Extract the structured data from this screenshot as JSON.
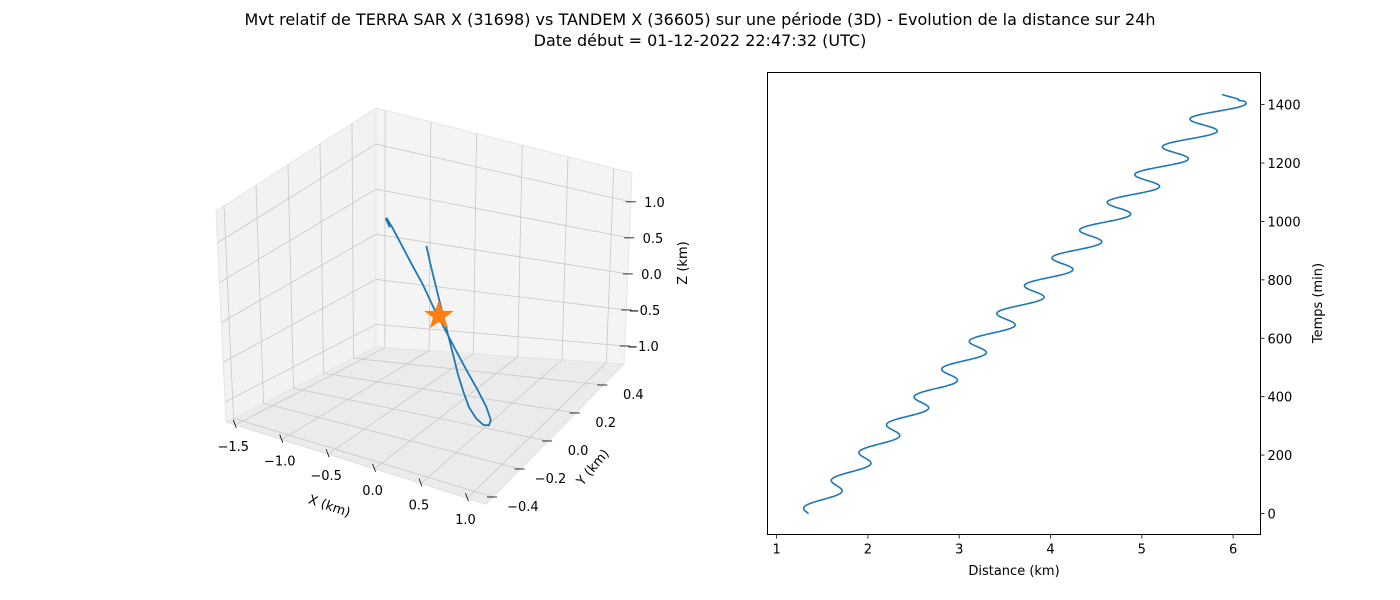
{
  "figure": {
    "title_line1": "Mvt relatif de TERRA SAR X (31698) vs TANDEM X (36605) sur une période (3D) - Evolution de la distance sur 24h",
    "title_line2": "Date début = 01-12-2022 22:47:32 (UTC)"
  },
  "colors": {
    "series": "#1f77b4",
    "marker": "#ff7f0e",
    "pane": "#f2f2f2",
    "grid": "#c8c8c8"
  },
  "chart_data": [
    {
      "type": "line3d",
      "xlabel": "X (km)",
      "ylabel": "Y (km)",
      "zlabel": "Z (km)",
      "x_ticks": [
        "−1.5",
        "−1.0",
        "−0.5",
        "0.0",
        "0.5",
        "1.0"
      ],
      "y_ticks": [
        "−0.4",
        "−0.2",
        "0.0",
        "0.2",
        "0.4"
      ],
      "z_ticks": [
        "−1.0",
        "−0.5",
        "0.0",
        "0.5",
        "1.0"
      ],
      "xlim": [
        -1.6,
        1.2
      ],
      "ylim": [
        -0.45,
        0.55
      ],
      "zlim": [
        -1.25,
        1.4
      ],
      "series": [
        {
          "x": [
            -0.1,
            -0.06,
            -0.01,
            0.04,
            0.09,
            0.14,
            0.19,
            0.24,
            0.3,
            0.36,
            0.44,
            0.52,
            0.58,
            0.6,
            0.55,
            0.45,
            0.33,
            0.21,
            0.09,
            -0.03,
            -0.14,
            -0.26,
            -0.37,
            -0.46,
            -0.52,
            -0.53,
            -0.49
          ],
          "y": [
            -0.02,
            -0.02,
            -0.02,
            -0.02,
            -0.02,
            -0.02,
            -0.02,
            -0.02,
            -0.02,
            -0.02,
            -0.02,
            -0.02,
            -0.02,
            -0.02,
            -0.02,
            -0.02,
            -0.02,
            -0.02,
            -0.02,
            -0.02,
            -0.02,
            -0.02,
            -0.02,
            -0.02,
            -0.02,
            -0.02,
            -0.02
          ],
          "z": [
            0.85,
            0.65,
            0.43,
            0.21,
            0.0,
            -0.21,
            -0.42,
            -0.63,
            -0.83,
            -1.0,
            -1.12,
            -1.18,
            -1.17,
            -1.1,
            -0.95,
            -0.76,
            -0.55,
            -0.33,
            -0.1,
            0.13,
            0.37,
            0.59,
            0.8,
            0.97,
            1.07,
            1.06,
            0.97
          ]
        }
      ],
      "markers": [
        {
          "shape": "star",
          "x": 0.0,
          "y": 0.0,
          "z": 0.0
        }
      ]
    },
    {
      "type": "line",
      "xlabel": "Distance (km)",
      "ylabel": "Temps (min)",
      "y_axis_side": "right",
      "xlim": [
        0.9,
        6.3
      ],
      "ylim": [
        -72,
        1510
      ],
      "x_ticks": [
        1,
        2,
        3,
        4,
        5,
        6
      ],
      "y_ticks": [
        0,
        200,
        400,
        600,
        800,
        1000,
        1200,
        1400
      ],
      "series": [
        {
          "distance_start": 1.35,
          "distance_end": 6.02,
          "distance_end_max": 6.06,
          "time_start": 0,
          "time_end": 1435,
          "oscillation_amplitude_start": 0.12,
          "oscillation_amplitude_end": 0.23,
          "oscillation_period": 95
        }
      ]
    }
  ]
}
